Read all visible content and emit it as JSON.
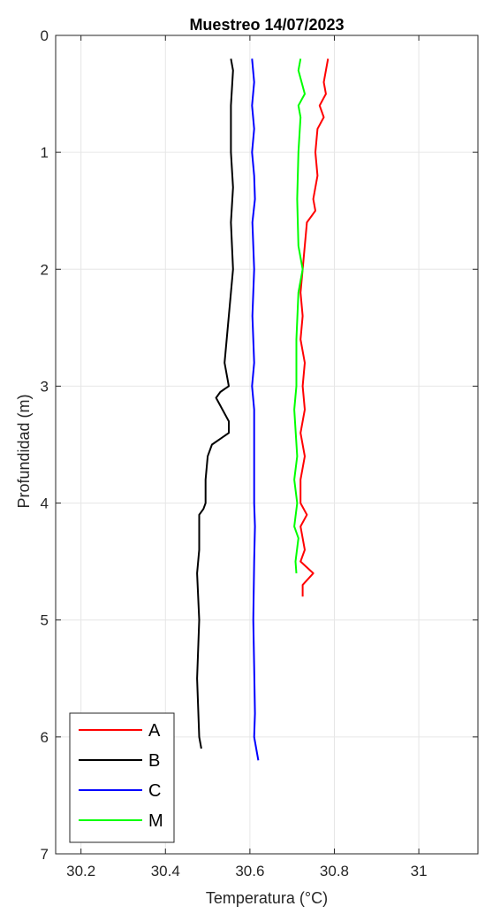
{
  "chart_data": {
    "type": "line",
    "title": "Muestreo 14/07/2023",
    "xlabel": "Temperatura (°C)",
    "ylabel": "Profundidad (m)",
    "xlim": [
      30.14,
      31.14
    ],
    "ylim": [
      0,
      7
    ],
    "y_reversed": true,
    "grid": true,
    "legend_position": "bottom-left",
    "x_ticks": [
      {
        "value": 30.2,
        "label": "30.2"
      },
      {
        "value": 30.4,
        "label": "30.4"
      },
      {
        "value": 30.6,
        "label": "30.6"
      },
      {
        "value": 30.8,
        "label": "30.8"
      },
      {
        "value": 31.0,
        "label": "31"
      }
    ],
    "y_ticks": [
      {
        "value": 0,
        "label": "0"
      },
      {
        "value": 1,
        "label": "1"
      },
      {
        "value": 2,
        "label": "2"
      },
      {
        "value": 3,
        "label": "3"
      },
      {
        "value": 4,
        "label": "4"
      },
      {
        "value": 5,
        "label": "5"
      },
      {
        "value": 6,
        "label": "6"
      },
      {
        "value": 7,
        "label": "7"
      }
    ],
    "series": [
      {
        "name": "A",
        "color": "#ff0000",
        "points": [
          [
            30.785,
            0.2
          ],
          [
            30.775,
            0.4
          ],
          [
            30.78,
            0.5
          ],
          [
            30.765,
            0.6
          ],
          [
            30.775,
            0.7
          ],
          [
            30.76,
            0.8
          ],
          [
            30.755,
            1.0
          ],
          [
            30.76,
            1.2
          ],
          [
            30.75,
            1.4
          ],
          [
            30.755,
            1.5
          ],
          [
            30.735,
            1.6
          ],
          [
            30.73,
            1.8
          ],
          [
            30.725,
            2.0
          ],
          [
            30.72,
            2.2
          ],
          [
            30.725,
            2.4
          ],
          [
            30.72,
            2.6
          ],
          [
            30.73,
            2.8
          ],
          [
            30.725,
            3.0
          ],
          [
            30.73,
            3.2
          ],
          [
            30.72,
            3.4
          ],
          [
            30.73,
            3.6
          ],
          [
            30.72,
            3.8
          ],
          [
            30.72,
            4.0
          ],
          [
            30.735,
            4.1
          ],
          [
            30.72,
            4.2
          ],
          [
            30.73,
            4.4
          ],
          [
            30.72,
            4.5
          ],
          [
            30.75,
            4.6
          ],
          [
            30.725,
            4.7
          ],
          [
            30.725,
            4.8
          ]
        ]
      },
      {
        "name": "B",
        "color": "#000000",
        "points": [
          [
            30.555,
            0.2
          ],
          [
            30.56,
            0.3
          ],
          [
            30.555,
            0.6
          ],
          [
            30.555,
            1.0
          ],
          [
            30.56,
            1.3
          ],
          [
            30.555,
            1.6
          ],
          [
            30.56,
            2.0
          ],
          [
            30.555,
            2.2
          ],
          [
            30.55,
            2.4
          ],
          [
            30.545,
            2.6
          ],
          [
            30.54,
            2.8
          ],
          [
            30.55,
            3.0
          ],
          [
            30.53,
            3.05
          ],
          [
            30.52,
            3.1
          ],
          [
            30.535,
            3.2
          ],
          [
            30.55,
            3.3
          ],
          [
            30.55,
            3.4
          ],
          [
            30.53,
            3.45
          ],
          [
            30.51,
            3.5
          ],
          [
            30.5,
            3.6
          ],
          [
            30.495,
            3.8
          ],
          [
            30.495,
            4.0
          ],
          [
            30.49,
            4.05
          ],
          [
            30.48,
            4.1
          ],
          [
            30.48,
            4.4
          ],
          [
            30.475,
            4.6
          ],
          [
            30.48,
            5.0
          ],
          [
            30.475,
            5.5
          ],
          [
            30.48,
            6.0
          ],
          [
            30.485,
            6.1
          ]
        ]
      },
      {
        "name": "C",
        "color": "#0000ff",
        "points": [
          [
            30.605,
            0.2
          ],
          [
            30.61,
            0.4
          ],
          [
            30.605,
            0.6
          ],
          [
            30.61,
            0.8
          ],
          [
            30.605,
            1.0
          ],
          [
            30.61,
            1.2
          ],
          [
            30.612,
            1.4
          ],
          [
            30.606,
            1.6
          ],
          [
            30.61,
            2.0
          ],
          [
            30.606,
            2.4
          ],
          [
            30.61,
            2.8
          ],
          [
            30.605,
            3.0
          ],
          [
            30.61,
            3.2
          ],
          [
            30.61,
            3.6
          ],
          [
            30.61,
            4.0
          ],
          [
            30.612,
            4.2
          ],
          [
            30.61,
            4.5
          ],
          [
            30.608,
            5.0
          ],
          [
            30.61,
            5.4
          ],
          [
            30.612,
            5.8
          ],
          [
            30.61,
            6.0
          ],
          [
            30.62,
            6.2
          ]
        ]
      },
      {
        "name": "M",
        "color": "#00ff00",
        "points": [
          [
            30.72,
            0.2
          ],
          [
            30.715,
            0.3
          ],
          [
            30.73,
            0.5
          ],
          [
            30.715,
            0.6
          ],
          [
            30.72,
            0.7
          ],
          [
            30.715,
            1.0
          ],
          [
            30.712,
            1.4
          ],
          [
            30.715,
            1.8
          ],
          [
            30.725,
            2.0
          ],
          [
            30.715,
            2.2
          ],
          [
            30.71,
            2.6
          ],
          [
            30.71,
            3.0
          ],
          [
            30.705,
            3.2
          ],
          [
            30.712,
            3.6
          ],
          [
            30.705,
            3.8
          ],
          [
            30.712,
            4.0
          ],
          [
            30.705,
            4.2
          ],
          [
            30.715,
            4.3
          ],
          [
            30.708,
            4.5
          ],
          [
            30.71,
            4.6
          ]
        ]
      }
    ]
  }
}
